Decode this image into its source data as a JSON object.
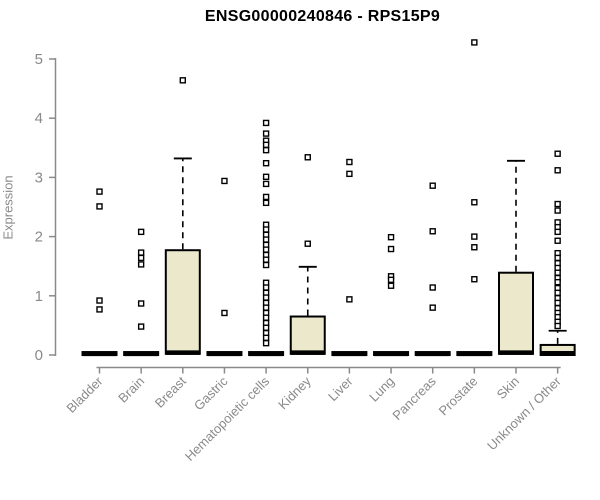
{
  "header": {
    "title": "ENSG00000240846 - RPS15P9"
  },
  "chart_data": {
    "type": "box",
    "title": "ENSG00000240846 - RPS15P9",
    "xlabel": "",
    "ylabel": "Expression",
    "ylim": [
      0,
      5
    ],
    "yticks": [
      0,
      1,
      2,
      3,
      4,
      5
    ],
    "grid": false,
    "legend": false,
    "axis_color": "#8a8a8a",
    "box_fill": "#ece8cb",
    "box_stroke": "#000000",
    "outlier_fill": "#ffffff",
    "categories": [
      "Bladder",
      "Brain",
      "Breast",
      "Gastric",
      "Hematopoietic cells",
      "Kidney",
      "Liver",
      "Lung",
      "Pancreas",
      "Prostate",
      "Skin",
      "Unknown / Other"
    ],
    "boxes": [
      {
        "label": "Bladder",
        "q1": 0,
        "median": 0.02,
        "q3": 0.05,
        "whisker_high": null,
        "outliers": [
          2.76,
          2.51,
          0.92,
          0.77
        ]
      },
      {
        "label": "Brain",
        "q1": 0,
        "median": 0.02,
        "q3": 0.05,
        "whisker_high": null,
        "outliers": [
          2.08,
          1.73,
          1.64,
          1.53,
          0.87,
          0.48
        ]
      },
      {
        "label": "Breast",
        "q1": 0.02,
        "median": 0.04,
        "q3": 1.77,
        "whisker_high": 3.32,
        "outliers": [
          4.64
        ]
      },
      {
        "label": "Gastric",
        "q1": 0,
        "median": 0.02,
        "q3": 0.05,
        "whisker_high": null,
        "outliers": [
          2.94,
          0.71
        ]
      },
      {
        "label": "Hematopoietic cells",
        "q1": 0,
        "median": 0.02,
        "q3": 0.05,
        "whisker_high": null,
        "outliers": [
          3.92,
          3.74,
          3.62,
          3.55,
          3.46,
          3.24,
          3.01,
          2.89,
          2.67,
          2.57,
          2.2,
          2.12,
          2.03,
          1.95,
          1.86,
          1.78,
          1.69,
          1.61,
          1.52,
          1.22,
          1.14,
          1.05,
          0.97,
          0.88,
          0.8,
          0.71,
          0.63,
          0.54,
          0.46,
          0.37,
          0.29,
          0.2
        ]
      },
      {
        "label": "Kidney",
        "q1": 0.02,
        "median": 0.04,
        "q3": 0.65,
        "whisker_high": 1.49,
        "outliers": [
          3.34,
          1.88
        ]
      },
      {
        "label": "Liver",
        "q1": 0,
        "median": 0.02,
        "q3": 0.05,
        "whisker_high": null,
        "outliers": [
          3.26,
          3.06,
          0.94
        ]
      },
      {
        "label": "Lung",
        "q1": 0,
        "median": 0.02,
        "q3": 0.05,
        "whisker_high": null,
        "outliers": [
          1.99,
          1.79,
          1.33,
          1.27,
          1.17
        ]
      },
      {
        "label": "Pancreas",
        "q1": 0,
        "median": 0.02,
        "q3": 0.05,
        "whisker_high": null,
        "outliers": [
          2.86,
          2.09,
          1.14,
          0.8
        ]
      },
      {
        "label": "Prostate",
        "q1": 0,
        "median": 0.02,
        "q3": 0.05,
        "whisker_high": null,
        "outliers": [
          5.28,
          2.58,
          2.0,
          1.82,
          1.28
        ]
      },
      {
        "label": "Skin",
        "q1": 0.02,
        "median": 0.04,
        "q3": 1.39,
        "whisker_high": 3.28,
        "outliers": []
      },
      {
        "label": "Unknown / Other",
        "q1": 0,
        "median": 0.03,
        "q3": 0.17,
        "whisker_high": 0.41,
        "outliers": [
          3.4,
          3.12,
          2.55,
          2.44,
          2.24,
          2.16,
          2.08,
          1.93,
          1.72,
          1.64,
          1.55,
          1.47,
          1.39,
          1.3,
          1.23,
          1.13,
          1.05,
          0.96,
          0.88,
          0.79,
          0.71,
          0.64,
          0.56,
          0.49
        ]
      }
    ]
  }
}
